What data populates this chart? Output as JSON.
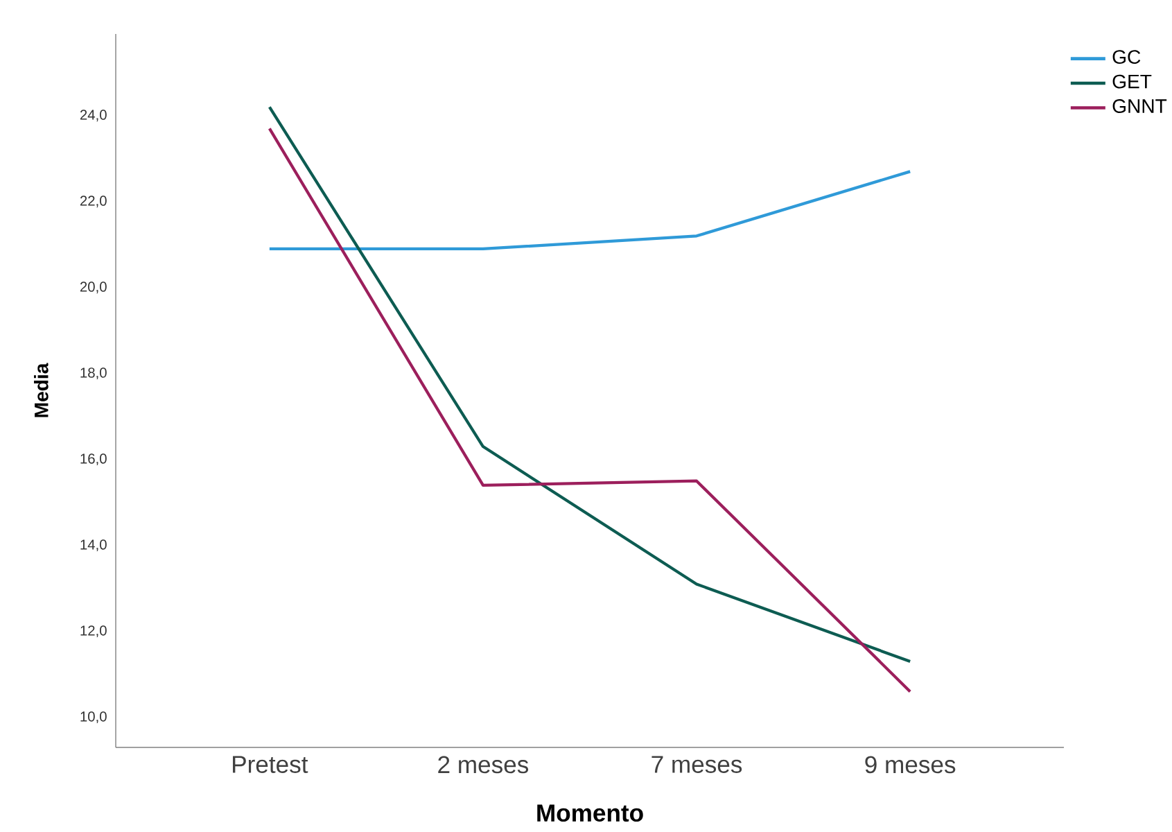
{
  "chart_data": {
    "type": "line",
    "xlabel": "Momento",
    "ylabel": "Media",
    "categories": [
      "Pretest",
      "2 meses",
      "7 meses",
      "9 meses"
    ],
    "series": [
      {
        "name": "GC",
        "color": "#2f9ad8",
        "values": [
          20.9,
          20.9,
          21.2,
          22.7
        ]
      },
      {
        "name": "GET",
        "color": "#0d5c52",
        "values": [
          24.2,
          16.3,
          13.1,
          11.3
        ]
      },
      {
        "name": "GNNT",
        "color": "#9c1f5c",
        "values": [
          23.7,
          15.4,
          15.5,
          10.6
        ]
      }
    ],
    "ylim": [
      9.3,
      25.9
    ],
    "yticks": [
      {
        "value": 10,
        "label": "10,0"
      },
      {
        "value": 12,
        "label": "12,0"
      },
      {
        "value": 14,
        "label": "14,0"
      },
      {
        "value": 16,
        "label": "16,0"
      },
      {
        "value": 18,
        "label": "18,0"
      },
      {
        "value": 20,
        "label": "20,0"
      },
      {
        "value": 22,
        "label": "22,0"
      },
      {
        "value": 24,
        "label": "24,0"
      }
    ],
    "grid": false,
    "legend": "top right",
    "marker": "none",
    "line_style": "solid"
  }
}
